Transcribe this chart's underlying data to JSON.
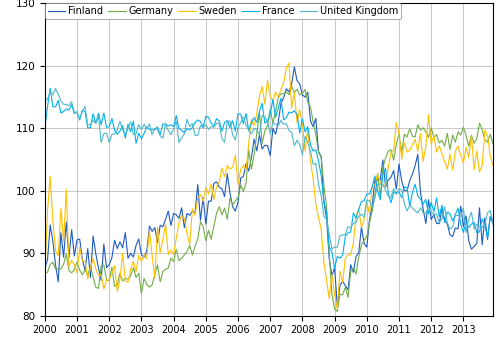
{
  "title": "",
  "ylabel": "",
  "xlabel": "",
  "ylim": [
    80,
    130
  ],
  "xlim": [
    2000.0,
    2013.92
  ],
  "yticks": [
    80,
    90,
    100,
    110,
    120,
    130
  ],
  "xticks": [
    2000,
    2001,
    2002,
    2003,
    2004,
    2005,
    2006,
    2007,
    2008,
    2009,
    2010,
    2011,
    2012,
    2013
  ],
  "colors": {
    "Finland": "#1f5bc4",
    "Germany": "#70ad47",
    "Sweden": "#ffc000",
    "France": "#00b0f0",
    "United_Kingdom": "#4db8c8"
  },
  "background_color": "#ffffff",
  "grid_color": "#b0b0b0"
}
